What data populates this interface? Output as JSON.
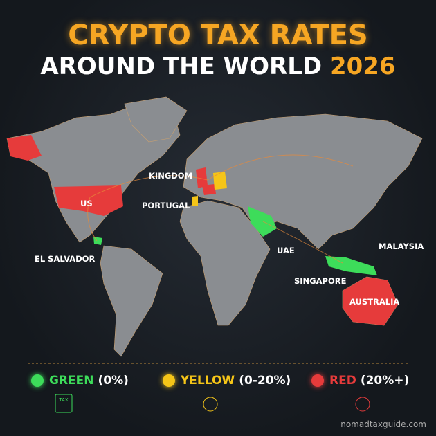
{
  "header": {
    "title_line1": "CRYPTO TAX RATES",
    "title_line2": "AROUND THE WORLD",
    "year": "2026"
  },
  "map": {
    "labels": [
      "US",
      "KINGDOM",
      "PORTUGAL",
      "EL SALVADOR",
      "UAE",
      "SINGAPORE",
      "MALAYSIA",
      "AUSTRALIA"
    ]
  },
  "legend": [
    {
      "name": "GREEN",
      "rate": "(0%)",
      "color": "#3ddc5a"
    },
    {
      "name": "YELLOW",
      "rate": "(0-20%)",
      "color": "#f5c518"
    },
    {
      "name": "RED",
      "rate": "(20%+)",
      "color": "#e63b3b"
    }
  ],
  "icon_text": "TAX",
  "footer": "nomadtaxguide.com"
}
